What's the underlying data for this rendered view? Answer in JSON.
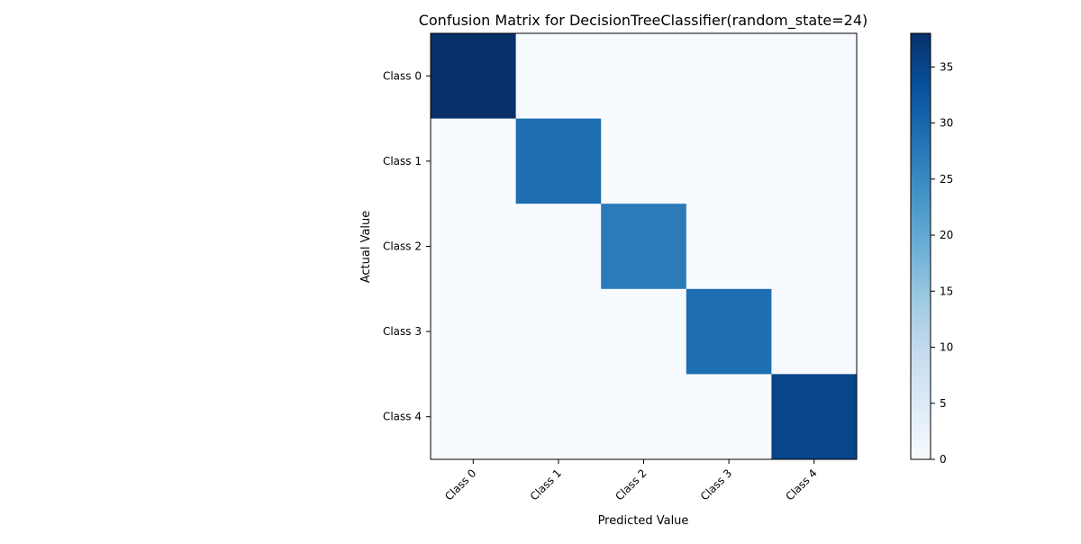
{
  "chart_data": {
    "type": "heatmap",
    "title": "Confusion Matrix for DecisionTreeClassifier(random_state=24)",
    "xlabel": "Predicted Value",
    "ylabel": "Actual Value",
    "x_categories": [
      "Class 0",
      "Class 1",
      "Class 2",
      "Class 3",
      "Class 4"
    ],
    "y_categories": [
      "Class 0",
      "Class 1",
      "Class 2",
      "Class 3",
      "Class 4"
    ],
    "matrix": [
      [
        38,
        0,
        0,
        0,
        0
      ],
      [
        0,
        29,
        0,
        0,
        0
      ],
      [
        0,
        0,
        27,
        0,
        0
      ],
      [
        0,
        0,
        0,
        29,
        0
      ],
      [
        0,
        0,
        0,
        0,
        35
      ]
    ],
    "colormap": "Blues",
    "colorbar": {
      "min": 0,
      "max": 38,
      "ticks": [
        0,
        5,
        10,
        15,
        20,
        25,
        30,
        35
      ]
    },
    "grid": false
  }
}
